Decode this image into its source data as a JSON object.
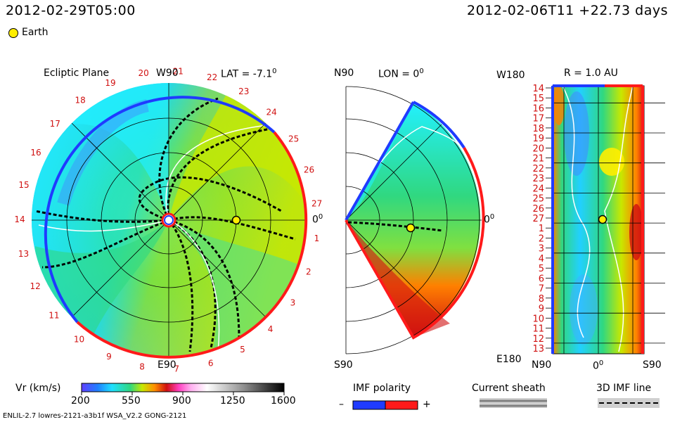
{
  "header": {
    "date_left": "2012-02-29T05:00",
    "date_right": "2012-02-06T11 +22.73 days",
    "earth_label": "Earth"
  },
  "ecliptic": {
    "title": "Ecliptic Plane",
    "w_label": "W90",
    "e_label": "E90",
    "lat_label": "LAT = -7.1",
    "zero_label": "0",
    "deg": "0",
    "carrington": [
      "1",
      "2",
      "3",
      "4",
      "5",
      "6",
      "7",
      "8",
      "9",
      "10",
      "11",
      "12",
      "13",
      "14",
      "15",
      "16",
      "17",
      "18",
      "19",
      "20",
      "21",
      "22",
      "23",
      "24",
      "25",
      "26",
      "27"
    ]
  },
  "meridional": {
    "n_label": "N90",
    "s_label": "S90",
    "lon_label": "LON = 0",
    "zero_label": "0",
    "deg": "0"
  },
  "radial": {
    "w_label": "W180",
    "e_label": "E180",
    "r_label": "R = 1.0 AU",
    "n_label": "N90",
    "s_label": "S90",
    "zero_label": "0",
    "deg": "0",
    "rows": [
      "14",
      "15",
      "16",
      "17",
      "18",
      "19",
      "20",
      "21",
      "22",
      "23",
      "24",
      "25",
      "26",
      "27",
      "1",
      "2",
      "3",
      "4",
      "5",
      "6",
      "7",
      "8",
      "9",
      "10",
      "11",
      "12",
      "13"
    ]
  },
  "colorbar": {
    "title": "Vr (km/s)",
    "ticks": [
      "200",
      "550",
      "900",
      "1250",
      "1600"
    ]
  },
  "imf": {
    "title": "IMF polarity",
    "minus": "–",
    "plus": "+"
  },
  "sheath": {
    "title": "Current sheath"
  },
  "line3d": {
    "title": "3D IMF line"
  },
  "footer": {
    "credit": "ENLIL-2.7 lowres-2121-a3b1f WSA_V2.2 GONG-2121"
  },
  "colors": {
    "red": "#ff1a1a",
    "blue": "#1f3bff",
    "earth": "#ffee00",
    "cyan": "#22f0ff",
    "green": "#30d880",
    "yellow": "#c8e800"
  },
  "chart_data": [
    {
      "type": "heatmap",
      "title": "Ecliptic Plane",
      "variable": "Vr (km/s)",
      "colorbar_range": [
        200,
        1600
      ],
      "colorbar_ticks": [
        200,
        550,
        900,
        1250,
        1600
      ],
      "annotations": [
        "W90",
        "E90",
        "LAT = -7.1",
        "0"
      ],
      "earth": {
        "longitude_deg": 0,
        "r_au": 1.0
      }
    },
    {
      "type": "heatmap",
      "title": "LON = 0",
      "axis_labels": [
        "N90",
        "S90",
        "0"
      ]
    },
    {
      "type": "heatmap",
      "title": "R = 1.0 AU",
      "x_ticks": [
        "N90",
        "0",
        "S90"
      ],
      "y_ticks": [
        "14",
        "15",
        "16",
        "17",
        "18",
        "19",
        "20",
        "21",
        "22",
        "23",
        "24",
        "25",
        "26",
        "27",
        "1",
        "2",
        "3",
        "4",
        "5",
        "6",
        "7",
        "8",
        "9",
        "10",
        "11",
        "12",
        "13"
      ],
      "y_range_labels": [
        "W180",
        "E180"
      ]
    }
  ]
}
